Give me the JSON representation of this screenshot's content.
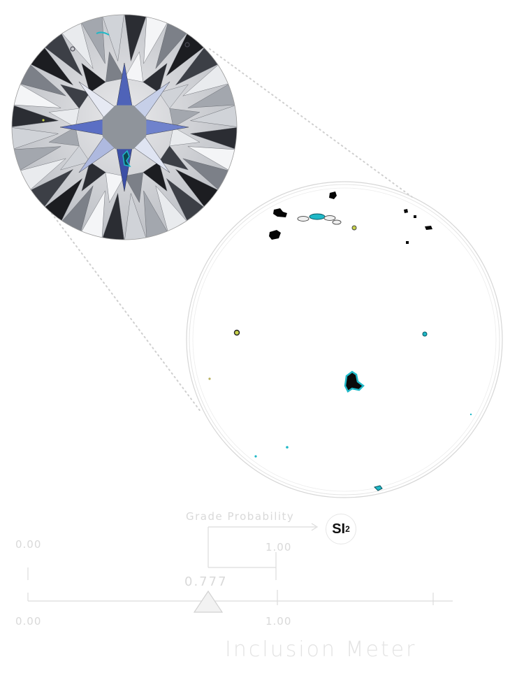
{
  "grade_probability": {
    "label": "Grade Probability",
    "grade_main": "SI",
    "grade_sub": "2",
    "scale_min": "0.00",
    "scale_max": "1.00",
    "value": 0.777,
    "value_label": "0.777"
  },
  "inclusion_meter": {
    "title": "Inclusion Meter",
    "scale_min": "0.00",
    "scale_max": "1.00"
  },
  "colors": {
    "diamond_face": "#c9cdd2",
    "star_facet_blue": "#5a6fc0",
    "table_gray": "#9aa0a8",
    "inclusion_cyan": "#1fb8c7",
    "inclusion_dark": "#0a0a0a",
    "inclusion_yellow": "#c8d24a",
    "line_gray": "#dcdcdc"
  }
}
